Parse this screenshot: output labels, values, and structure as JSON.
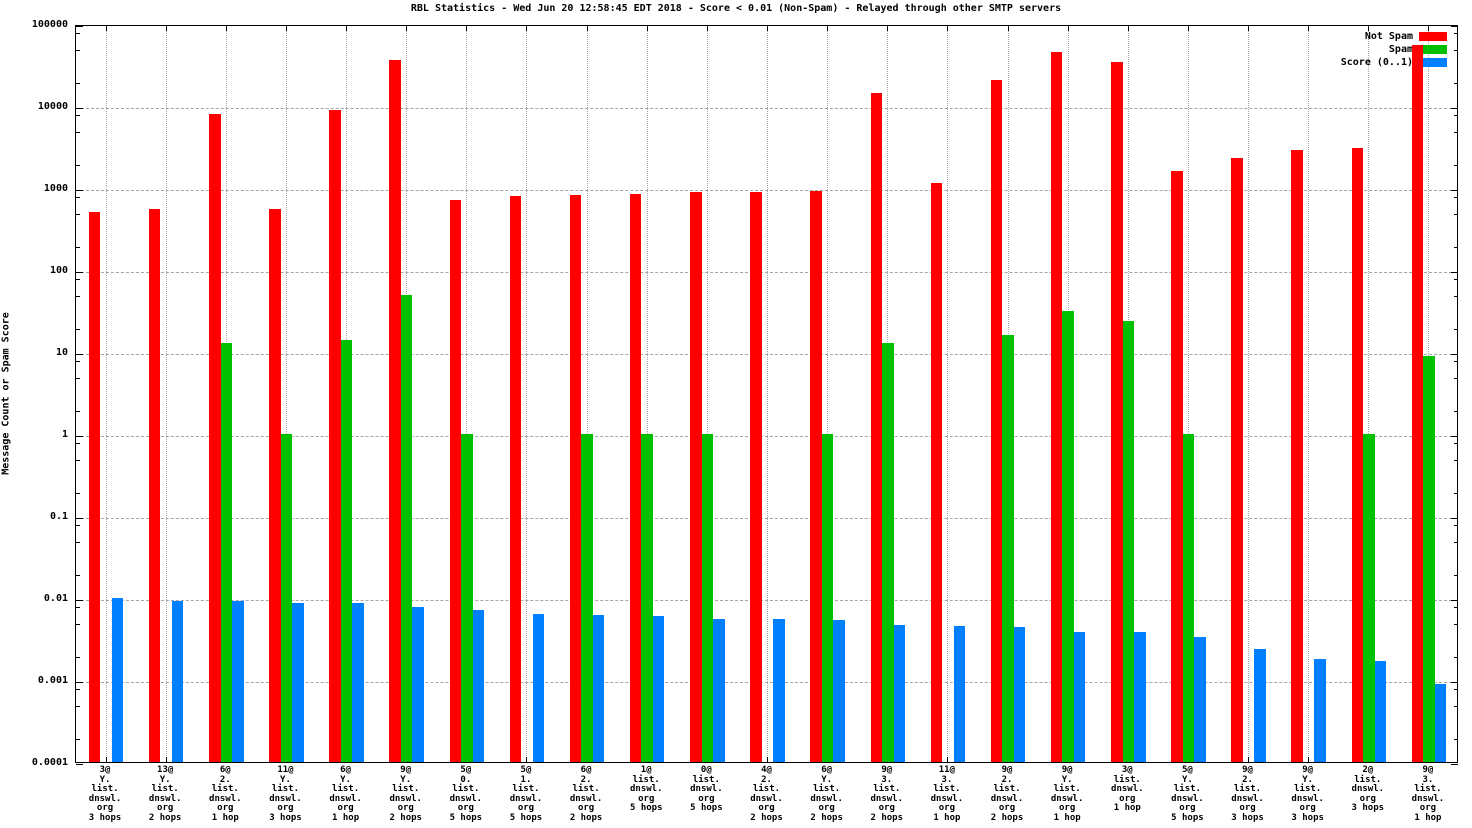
{
  "title": "RBL Statistics - Wed Jun 20 12:58:45 EDT 2018 - Score < 0.01 (Non-Spam) - Relayed through other SMTP servers",
  "y_axis_label": "Message Count or Spam Score",
  "chart_data": {
    "type": "bar",
    "title": "RBL Statistics - Wed Jun 20 12:58:45 EDT 2018 - Score < 0.01 (Non-Spam) - Relayed through other SMTP servers",
    "ylabel": "Message Count or Spam Score",
    "y_scale": "log",
    "ylim": [
      0.0001,
      100000
    ],
    "y_tick_labels": [
      "100000",
      "10000",
      "1000",
      "100",
      "10",
      "1",
      "0.1",
      "0.01",
      "0.001",
      "0.0001"
    ],
    "grid": true,
    "legend_position": "top-right",
    "categories": [
      [
        "3@",
        "Y.",
        "list.",
        "dnswl.",
        "org",
        "3 hops"
      ],
      [
        "13@",
        "Y.",
        "list.",
        "dnswl.",
        "org",
        "2 hops"
      ],
      [
        "6@",
        "2.",
        "list.",
        "dnswl.",
        "org",
        "1 hop"
      ],
      [
        "11@",
        "Y.",
        "list.",
        "dnswl.",
        "org",
        "3 hops"
      ],
      [
        "6@",
        "Y.",
        "list.",
        "dnswl.",
        "org",
        "1 hop"
      ],
      [
        "9@",
        "Y.",
        "list.",
        "dnswl.",
        "org",
        "2 hops"
      ],
      [
        "5@",
        "0.",
        "list.",
        "dnswl.",
        "org",
        "5 hops"
      ],
      [
        "5@",
        "1.",
        "list.",
        "dnswl.",
        "org",
        "5 hops"
      ],
      [
        "6@",
        "2.",
        "list.",
        "dnswl.",
        "org",
        "2 hops"
      ],
      [
        "1@",
        "list.",
        "dnswl.",
        "org",
        "5 hops"
      ],
      [
        "0@",
        "list.",
        "dnswl.",
        "org",
        "5 hops"
      ],
      [
        "4@",
        "2.",
        "list.",
        "dnswl.",
        "org",
        "2 hops"
      ],
      [
        "6@",
        "Y.",
        "list.",
        "dnswl.",
        "org",
        "2 hops"
      ],
      [
        "9@",
        "3.",
        "list.",
        "dnswl.",
        "org",
        "2 hops"
      ],
      [
        "11@",
        "3.",
        "list.",
        "dnswl.",
        "org",
        "1 hop"
      ],
      [
        "9@",
        "2.",
        "list.",
        "dnswl.",
        "org",
        "2 hops"
      ],
      [
        "9@",
        "Y.",
        "list.",
        "dnswl.",
        "org",
        "1 hop"
      ],
      [
        "3@",
        "list.",
        "dnswl.",
        "org",
        "1 hop"
      ],
      [
        "5@",
        "Y.",
        "list.",
        "dnswl.",
        "org",
        "5 hops"
      ],
      [
        "9@",
        "2.",
        "list.",
        "dnswl.",
        "org",
        "3 hops"
      ],
      [
        "9@",
        "Y.",
        "list.",
        "dnswl.",
        "org",
        "3 hops"
      ],
      [
        "2@",
        "list.",
        "dnswl.",
        "org",
        "3 hops"
      ],
      [
        "9@",
        "3.",
        "list.",
        "dnswl.",
        "org",
        "1 hop"
      ]
    ],
    "series": [
      {
        "name": "Not Spam",
        "color": "#ff0000",
        "values": [
          510,
          550,
          8000,
          560,
          9000,
          36000,
          720,
          810,
          820,
          850,
          890,
          900,
          930,
          14500,
          1150,
          21000,
          45000,
          34000,
          1600,
          2300,
          2900,
          3100,
          55000
        ]
      },
      {
        "name": "Spam",
        "color": "#00c000",
        "values": [
          null,
          null,
          13,
          1,
          14,
          50,
          1,
          null,
          1,
          1,
          1,
          null,
          1,
          13,
          null,
          16,
          32,
          24,
          1,
          null,
          null,
          1,
          9
        ]
      },
      {
        "name": "Score (0..1)",
        "color": "#0080ff",
        "values": [
          0.01,
          0.0092,
          0.0092,
          0.0088,
          0.0088,
          0.0078,
          0.0072,
          0.0064,
          0.0062,
          0.006,
          0.0056,
          0.0055,
          0.0054,
          0.0047,
          0.0045,
          0.0044,
          0.0039,
          0.0038,
          0.0033,
          0.0024,
          0.0018,
          0.0017,
          0.0009
        ]
      }
    ]
  }
}
